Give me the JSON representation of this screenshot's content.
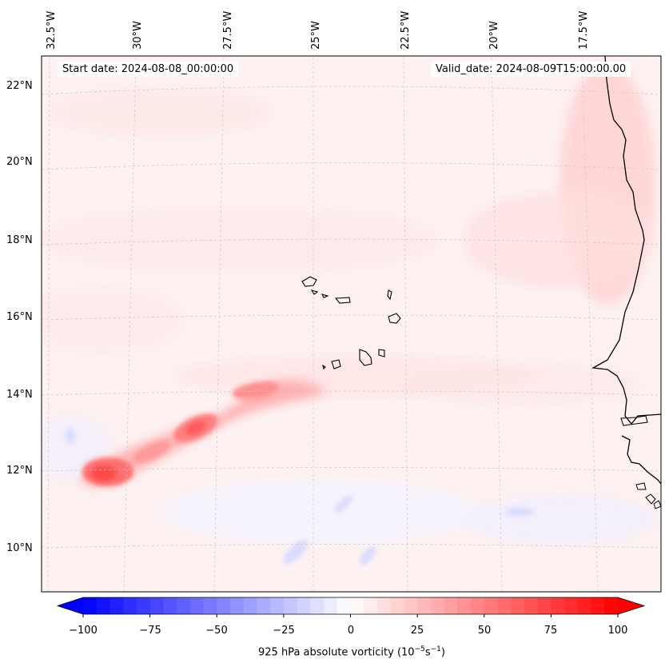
{
  "map": {
    "start_date_label": "Start date: 2024-08-08_00:00:00",
    "valid_date_label": "Valid_date: 2024-08-09T15:00:00.00",
    "lon_labels": [
      "32.5°W",
      "30°W",
      "27.5°W",
      "25°W",
      "22.5°W",
      "20°W",
      "17.5°W"
    ],
    "lat_labels": [
      "22°N",
      "20°N",
      "18°N",
      "16°N",
      "14°N",
      "12°N",
      "10°N"
    ],
    "colors": {
      "coast": "#000000",
      "grid": "#bfbfbf",
      "vort_max": "#ff0000",
      "vort_min": "#0000ff"
    }
  },
  "colorbar": {
    "label": "925 hPa absolute vorticity (10",
    "label_exp1": "−5",
    "label_mid": "s",
    "label_exp2": "−1",
    "label_end": ")",
    "ticks": [
      "−100",
      "−75",
      "−50",
      "−25",
      "0",
      "25",
      "50",
      "75",
      "100"
    ],
    "range": [
      -100,
      100
    ],
    "levels": 40
  }
}
